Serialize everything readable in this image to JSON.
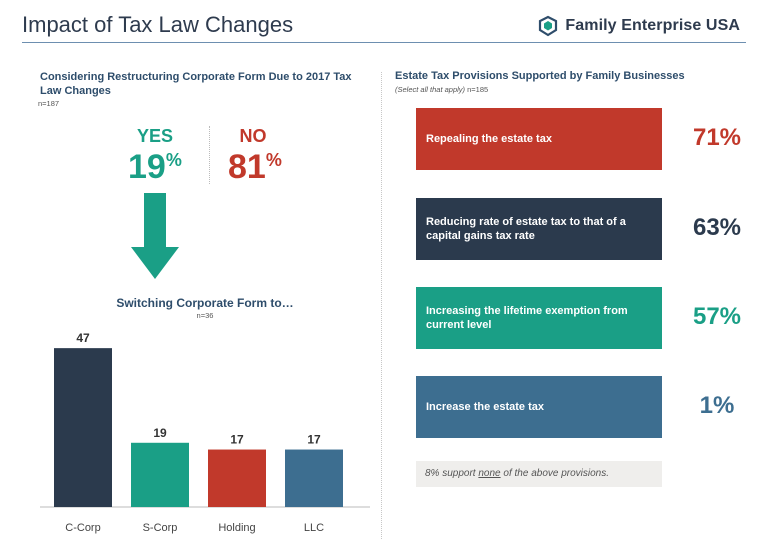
{
  "header": {
    "title": "Impact of Tax Law Changes",
    "brand": "Family Enterprise USA"
  },
  "restructuring": {
    "title": "Considering Restructuring Corporate Form Due to 2017 Tax Law Changes",
    "n": "n=187",
    "yes_label": "YES",
    "no_label": "NO",
    "yes_value": "19",
    "no_value": "81",
    "pct_symbol": "%"
  },
  "switching": {
    "title": "Switching Corporate Form to…",
    "n": "n=36"
  },
  "estate": {
    "title": "Estate Tax Provisions Supported by Family Businesses",
    "sub_italic": "(Select all that apply)",
    "sub_n": " n=185",
    "items": [
      {
        "label": "Repealing the estate tax",
        "pct": "71%",
        "color": "#c1392b"
      },
      {
        "label": "Reducing rate of estate tax to that of a capital gains tax rate",
        "pct": "63%",
        "color": "#2b3a4d"
      },
      {
        "label": "Increasing the lifetime exemption from current level",
        "pct": "57%",
        "color": "#1a9f86"
      },
      {
        "label": "Increase the estate tax",
        "pct": "1%",
        "color": "#3d6e90"
      }
    ],
    "note_pre": "8% support ",
    "note_u": "none",
    "note_post": " of the above provisions."
  },
  "colors": {
    "yes": "#1a9f86",
    "no": "#c1392b",
    "navy": "#2b3a4d",
    "steel": "#3d6e90"
  },
  "chart_data": [
    {
      "type": "bar",
      "categories": [
        "C-Corp",
        "S-Corp",
        "Holding",
        "LLC"
      ],
      "values": [
        47,
        19,
        17,
        17
      ],
      "colors": [
        "#2b3a4d",
        "#1a9f86",
        "#c1392b",
        "#3d6e90"
      ],
      "title": "Switching Corporate Form to…",
      "ylim": [
        0,
        50
      ],
      "grid": false
    },
    {
      "type": "bar",
      "categories": [
        "Repealing the estate tax",
        "Reducing rate of estate tax to that of a capital gains tax rate",
        "Increasing the lifetime exemption from current level",
        "Increase the estate tax"
      ],
      "values": [
        71,
        63,
        57,
        1
      ],
      "title": "Estate Tax Provisions Supported by Family Businesses"
    },
    {
      "type": "pie",
      "categories": [
        "YES",
        "NO"
      ],
      "values": [
        19,
        81
      ],
      "title": "Considering Restructuring Corporate Form Due to 2017 Tax Law Changes"
    }
  ]
}
